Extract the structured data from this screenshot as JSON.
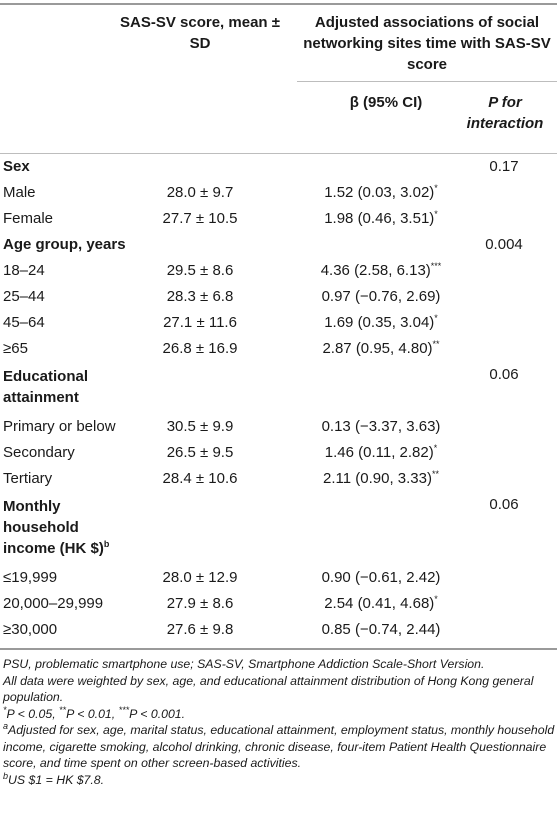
{
  "header": {
    "col2": "SAS-SV score, mean ± SD",
    "col3_group": "Adjusted associations of social networking sites time with SAS-SV score",
    "col3": "β (95% CI)",
    "col4": "P for interaction"
  },
  "rows": [
    {
      "label": "Sex",
      "group": true,
      "p": "0.17"
    },
    {
      "label": "Male",
      "mean": "28.0 ± 9.7",
      "ci": "1.52 (0.03, 3.02)",
      "sig": "*"
    },
    {
      "label": "Female",
      "mean": "27.7 ± 10.5",
      "ci": "1.98 (0.46, 3.51)",
      "sig": "*"
    },
    {
      "label": "Age group, years",
      "group": true,
      "p": "0.004"
    },
    {
      "label": "18–24",
      "mean": "29.5 ± 8.6",
      "ci": "4.36 (2.58, 6.13)",
      "sig": "***"
    },
    {
      "label": "25–44",
      "mean": "28.3 ± 6.8",
      "ci": "0.97 (−0.76, 2.69)",
      "sig": ""
    },
    {
      "label": "45–64",
      "mean": "27.1 ± 11.6",
      "ci": "1.69 (0.35, 3.04)",
      "sig": "*"
    },
    {
      "label": "≥65",
      "mean": "26.8 ± 16.9",
      "ci": "2.87 (0.95, 4.80)",
      "sig": "**"
    },
    {
      "label": "Educational attainment",
      "group": true,
      "p": "0.06"
    },
    {
      "label": "Primary or below",
      "mean": "30.5 ± 9.9",
      "ci": "0.13 (−3.37, 3.63)",
      "sig": ""
    },
    {
      "label": "Secondary",
      "mean": "26.5 ± 9.5",
      "ci": "1.46 (0.11, 2.82)",
      "sig": "*"
    },
    {
      "label": "Tertiary",
      "mean": "28.4 ± 10.6",
      "ci": "2.11 (0.90, 3.33)",
      "sig": "**"
    },
    {
      "label": "Monthly household income (HK $)",
      "sup": "b",
      "group": true,
      "p": "0.06"
    },
    {
      "label": "≤19,999",
      "mean": "28.0 ± 12.9",
      "ci": "0.90 (−0.61, 2.42)",
      "sig": ""
    },
    {
      "label": "20,000–29,999",
      "mean": "27.9 ± 8.6",
      "ci": "2.54 (0.41, 4.68)",
      "sig": "*"
    },
    {
      "label": "≥30,000",
      "mean": "27.6 ± 9.8",
      "ci": "0.85 (−0.74, 2.44)",
      "sig": ""
    }
  ],
  "notes": {
    "abbrev": "PSU, problematic smartphone use; SAS-SV, Smartphone Addiction Scale-Short Version.",
    "weighting": "All data were weighted by sex, age, and educational attainment distribution of Hong Kong general population.",
    "sig": "*P < 0.05, **P < 0.01, ***P < 0.001.",
    "a": "aAdjusted for sex, age, marital status, educational attainment, employment status, monthly household income, cigarette smoking, alcohol drinking, chronic disease, four-item Patient Health Questionnaire score, and time spent on other screen-based activities.",
    "b": "bUS $1 = HK $7.8."
  }
}
